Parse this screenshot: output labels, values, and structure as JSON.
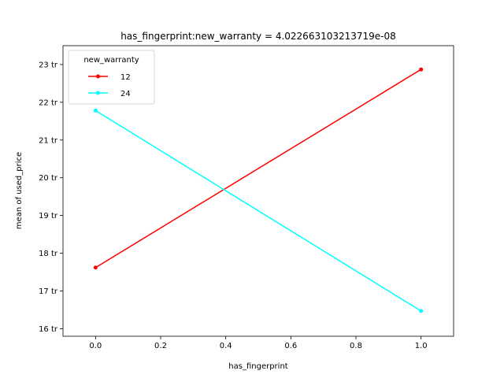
{
  "chart_data": {
    "type": "line",
    "title": "has_fingerprint:new_warranty = 4.022663103213719e-08",
    "xlabel": "has_fingerprint",
    "ylabel": "mean of used_price",
    "xlim": [
      -0.1,
      1.1
    ],
    "ylim": [
      15.8,
      23.5
    ],
    "xticks": [
      0.0,
      0.2,
      0.4,
      0.6,
      0.8,
      1.0
    ],
    "xtick_labels": [
      "0.0",
      "0.2",
      "0.4",
      "0.6",
      "0.8",
      "1.0"
    ],
    "yticks": [
      16,
      17,
      18,
      19,
      20,
      21,
      22,
      23
    ],
    "ytick_labels": [
      "16 tr",
      "17 tr",
      "18 tr",
      "19 tr",
      "20 tr",
      "21 tr",
      "22 tr",
      "23 tr"
    ],
    "legend_title": "new_warranty",
    "legend_position": "top-left",
    "grid": false,
    "series": [
      {
        "name": "12",
        "color": "#ff0000",
        "x": [
          0,
          1
        ],
        "y": [
          17.62,
          22.87
        ]
      },
      {
        "name": "24",
        "color": "#00ffff",
        "x": [
          0,
          1
        ],
        "y": [
          21.78,
          16.47
        ]
      }
    ]
  }
}
